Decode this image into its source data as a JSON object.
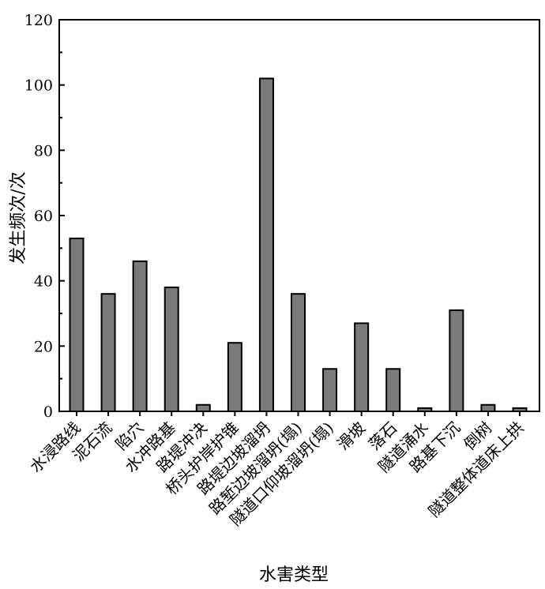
{
  "chart_data": {
    "type": "bar",
    "title": "",
    "xlabel": "水害类型",
    "ylabel": "发生频次/次",
    "ylim": [
      0,
      120
    ],
    "yticks": [
      0,
      20,
      40,
      60,
      80,
      100,
      120
    ],
    "grid": false,
    "legend": "none",
    "bar_color": "#7a7a7a",
    "categories": [
      "水浸路线",
      "泥石流",
      "陷穴",
      "水冲路基",
      "路堤冲决",
      "桥头护岸护锥",
      "路堤边坡溜坍",
      "路堑边坡溜坍(塌)",
      "隧道口仰坡溜坍(塌)",
      "滑坡",
      "落石",
      "隧道涌水",
      "路基下沉",
      "倒树",
      "隧道整体道床上拱"
    ],
    "values": [
      53,
      36,
      46,
      38,
      2,
      21,
      102,
      36,
      13,
      27,
      13,
      1,
      31,
      2,
      1
    ]
  }
}
